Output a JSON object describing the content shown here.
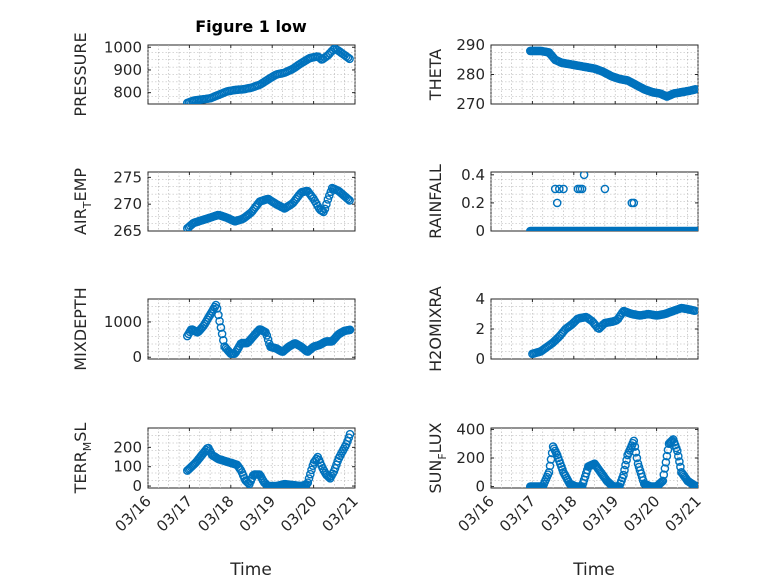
{
  "figure": {
    "title": "Figure 1 low",
    "marker_color": "#0072BD",
    "xlabel": "Time"
  },
  "chart_data": [
    {
      "type": "scatter",
      "ylabel": "PRESSURE",
      "ylim": [
        750,
        1010
      ],
      "yticks": [
        800,
        900,
        1000
      ],
      "xlim": [
        0,
        5
      ],
      "xticks": [
        0,
        1,
        2,
        3,
        4,
        5
      ],
      "grid": true,
      "anchors": [
        [
          0.95,
          755
        ],
        [
          1.1,
          765
        ],
        [
          1.3,
          770
        ],
        [
          1.5,
          775
        ],
        [
          1.7,
          790
        ],
        [
          1.9,
          805
        ],
        [
          2.1,
          812
        ],
        [
          2.3,
          815
        ],
        [
          2.5,
          822
        ],
        [
          2.7,
          835
        ],
        [
          2.9,
          858
        ],
        [
          3.1,
          880
        ],
        [
          3.3,
          888
        ],
        [
          3.5,
          905
        ],
        [
          3.7,
          930
        ],
        [
          3.9,
          952
        ],
        [
          4.1,
          960
        ],
        [
          4.2,
          945
        ],
        [
          4.35,
          965
        ],
        [
          4.5,
          995
        ],
        [
          4.6,
          985
        ],
        [
          4.75,
          965
        ],
        [
          4.9,
          945
        ]
      ],
      "step": 0.04
    },
    {
      "type": "scatter",
      "ylabel": "THETA",
      "ylim": [
        270,
        290
      ],
      "yticks": [
        270,
        280,
        290
      ],
      "xlim": [
        0,
        5
      ],
      "xticks": [
        0,
        1,
        2,
        3,
        4,
        5
      ],
      "grid": true,
      "anchors": [
        [
          0.95,
          288
        ],
        [
          1.2,
          288
        ],
        [
          1.4,
          287.5
        ],
        [
          1.55,
          285
        ],
        [
          1.7,
          284
        ],
        [
          1.9,
          283.5
        ],
        [
          2.1,
          283
        ],
        [
          2.3,
          282.5
        ],
        [
          2.5,
          282
        ],
        [
          2.7,
          281
        ],
        [
          2.9,
          279.5
        ],
        [
          3.1,
          278.5
        ],
        [
          3.3,
          278
        ],
        [
          3.5,
          276.5
        ],
        [
          3.7,
          275
        ],
        [
          3.9,
          274
        ],
        [
          4.1,
          273.5
        ],
        [
          4.25,
          272.5
        ],
        [
          4.4,
          273.5
        ],
        [
          4.6,
          274
        ],
        [
          4.8,
          274.5
        ],
        [
          4.95,
          275
        ]
      ],
      "step": 0.03
    },
    {
      "type": "scatter",
      "ylabel": "AIR_TEMP",
      "ylabel_parts": [
        "AIR",
        "T",
        "EMP"
      ],
      "ylim": [
        265,
        276
      ],
      "yticks": [
        265,
        270,
        275
      ],
      "xlim": [
        0,
        5
      ],
      "xticks": [
        0,
        1,
        2,
        3,
        4,
        5
      ],
      "grid": true,
      "anchors": [
        [
          0.95,
          265.5
        ],
        [
          1.1,
          266.5
        ],
        [
          1.3,
          267
        ],
        [
          1.5,
          267.5
        ],
        [
          1.7,
          268
        ],
        [
          1.9,
          267.5
        ],
        [
          2.1,
          266.8
        ],
        [
          2.3,
          267.3
        ],
        [
          2.5,
          268.5
        ],
        [
          2.7,
          270.5
        ],
        [
          2.9,
          271
        ],
        [
          3.1,
          270
        ],
        [
          3.3,
          269.2
        ],
        [
          3.5,
          270.2
        ],
        [
          3.7,
          272.2
        ],
        [
          3.85,
          272.5
        ],
        [
          4.0,
          271
        ],
        [
          4.15,
          269
        ],
        [
          4.25,
          268.5
        ],
        [
          4.35,
          271
        ],
        [
          4.45,
          273
        ],
        [
          4.6,
          272.5
        ],
        [
          4.75,
          271.5
        ],
        [
          4.9,
          270.5
        ]
      ],
      "step": 0.035
    },
    {
      "type": "scatter",
      "ylabel": "RAINFALL",
      "ylim": [
        0,
        0.42
      ],
      "yticks": [
        0,
        0.2,
        0.4
      ],
      "xlim": [
        0,
        5
      ],
      "xticks": [
        0,
        1,
        2,
        3,
        4,
        5
      ],
      "grid": true,
      "baseline": {
        "from": 0.95,
        "to": 4.98,
        "step": 0.025,
        "y": 0
      },
      "points": [
        [
          1.55,
          0.3
        ],
        [
          1.65,
          0.3
        ],
        [
          1.75,
          0.3
        ],
        [
          1.6,
          0.2
        ],
        [
          2.1,
          0.3
        ],
        [
          2.2,
          0.3
        ],
        [
          2.25,
          0.4
        ],
        [
          2.15,
          0.3
        ],
        [
          2.75,
          0.3
        ],
        [
          3.4,
          0.2
        ],
        [
          3.45,
          0.2
        ]
      ]
    },
    {
      "type": "scatter",
      "ylabel": "MIXDEPTH",
      "ylim": [
        -50,
        1650
      ],
      "yticks": [
        0,
        1000
      ],
      "xlim": [
        0,
        5
      ],
      "xticks": [
        0,
        1,
        2,
        3,
        4,
        5
      ],
      "grid": true,
      "anchors": [
        [
          0.95,
          600
        ],
        [
          1.05,
          800
        ],
        [
          1.2,
          700
        ],
        [
          1.35,
          900
        ],
        [
          1.5,
          1200
        ],
        [
          1.65,
          1500
        ],
        [
          1.75,
          900
        ],
        [
          1.85,
          300
        ],
        [
          2.0,
          100
        ],
        [
          2.1,
          100
        ],
        [
          2.25,
          400
        ],
        [
          2.4,
          400
        ],
        [
          2.55,
          600
        ],
        [
          2.7,
          800
        ],
        [
          2.85,
          700
        ],
        [
          2.95,
          300
        ],
        [
          3.1,
          250
        ],
        [
          3.25,
          150
        ],
        [
          3.4,
          300
        ],
        [
          3.55,
          400
        ],
        [
          3.7,
          300
        ],
        [
          3.85,
          150
        ],
        [
          4.0,
          300
        ],
        [
          4.15,
          350
        ],
        [
          4.3,
          450
        ],
        [
          4.45,
          450
        ],
        [
          4.6,
          650
        ],
        [
          4.75,
          750
        ],
        [
          4.9,
          780
        ]
      ],
      "step": 0.03
    },
    {
      "type": "scatter",
      "ylabel": "H2OMIXRA",
      "ylim": [
        0,
        4
      ],
      "yticks": [
        0,
        2,
        4
      ],
      "xlim": [
        0,
        5
      ],
      "xticks": [
        0,
        1,
        2,
        3,
        4,
        5
      ],
      "grid": true,
      "anchors": [
        [
          1.0,
          0.35
        ],
        [
          1.2,
          0.5
        ],
        [
          1.35,
          0.8
        ],
        [
          1.5,
          1.1
        ],
        [
          1.65,
          1.5
        ],
        [
          1.8,
          2.0
        ],
        [
          1.95,
          2.3
        ],
        [
          2.1,
          2.7
        ],
        [
          2.3,
          2.8
        ],
        [
          2.45,
          2.5
        ],
        [
          2.6,
          2.0
        ],
        [
          2.75,
          2.4
        ],
        [
          2.95,
          2.5
        ],
        [
          3.05,
          2.6
        ],
        [
          3.2,
          3.2
        ],
        [
          3.4,
          3.0
        ],
        [
          3.6,
          2.9
        ],
        [
          3.8,
          3.0
        ],
        [
          4.0,
          2.9
        ],
        [
          4.2,
          3.0
        ],
        [
          4.4,
          3.2
        ],
        [
          4.6,
          3.4
        ],
        [
          4.8,
          3.3
        ],
        [
          4.95,
          3.2
        ]
      ],
      "step": 0.035
    },
    {
      "type": "scatter",
      "ylabel": "TERR_MSL",
      "ylabel_parts": [
        "TERR",
        "M",
        "SL"
      ],
      "ylim": [
        -10,
        300
      ],
      "yticks": [
        0,
        100,
        200
      ],
      "xlim": [
        0,
        5
      ],
      "xticks": [
        0,
        1,
        2,
        3,
        4,
        5
      ],
      "grid": true,
      "anchors": [
        [
          0.95,
          80
        ],
        [
          1.05,
          100
        ],
        [
          1.15,
          120
        ],
        [
          1.3,
          160
        ],
        [
          1.45,
          200
        ],
        [
          1.55,
          160
        ],
        [
          1.7,
          140
        ],
        [
          1.85,
          130
        ],
        [
          2.0,
          120
        ],
        [
          2.15,
          110
        ],
        [
          2.25,
          80
        ],
        [
          2.35,
          30
        ],
        [
          2.45,
          10
        ],
        [
          2.55,
          60
        ],
        [
          2.7,
          60
        ],
        [
          2.8,
          20
        ],
        [
          2.9,
          0
        ],
        [
          3.1,
          0
        ],
        [
          3.3,
          10
        ],
        [
          3.5,
          5
        ],
        [
          3.7,
          0
        ],
        [
          3.85,
          10
        ],
        [
          4.0,
          120
        ],
        [
          4.1,
          150
        ],
        [
          4.2,
          100
        ],
        [
          4.3,
          60
        ],
        [
          4.4,
          40
        ],
        [
          4.5,
          80
        ],
        [
          4.6,
          140
        ],
        [
          4.7,
          180
        ],
        [
          4.8,
          220
        ],
        [
          4.9,
          280
        ]
      ],
      "step": 0.03
    },
    {
      "type": "scatter",
      "ylabel": "SUN_FLUX",
      "ylabel_parts": [
        "SUN",
        "F",
        "LUX"
      ],
      "ylim": [
        -10,
        410
      ],
      "yticks": [
        0,
        200,
        400
      ],
      "xlim": [
        0,
        5
      ],
      "xticks": [
        0,
        1,
        2,
        3,
        4,
        5
      ],
      "grid": true,
      "anchors": [
        [
          0.95,
          0
        ],
        [
          1.25,
          0
        ],
        [
          1.4,
          100
        ],
        [
          1.5,
          280
        ],
        [
          1.6,
          220
        ],
        [
          1.75,
          100
        ],
        [
          1.9,
          20
        ],
        [
          2.05,
          0
        ],
        [
          2.2,
          0
        ],
        [
          2.35,
          140
        ],
        [
          2.5,
          160
        ],
        [
          2.65,
          100
        ],
        [
          2.8,
          40
        ],
        [
          2.95,
          0
        ],
        [
          3.1,
          0
        ],
        [
          3.2,
          80
        ],
        [
          3.3,
          220
        ],
        [
          3.45,
          320
        ],
        [
          3.55,
          160
        ],
        [
          3.7,
          20
        ],
        [
          3.85,
          0
        ],
        [
          4.0,
          0
        ],
        [
          4.15,
          40
        ],
        [
          4.3,
          300
        ],
        [
          4.4,
          330
        ],
        [
          4.5,
          250
        ],
        [
          4.6,
          100
        ],
        [
          4.75,
          40
        ],
        [
          4.9,
          10
        ],
        [
          4.98,
          0
        ]
      ],
      "step": 0.025
    }
  ],
  "xtick_labels": [
    "03/16",
    "03/17",
    "03/18",
    "03/19",
    "03/20",
    "03/21"
  ]
}
